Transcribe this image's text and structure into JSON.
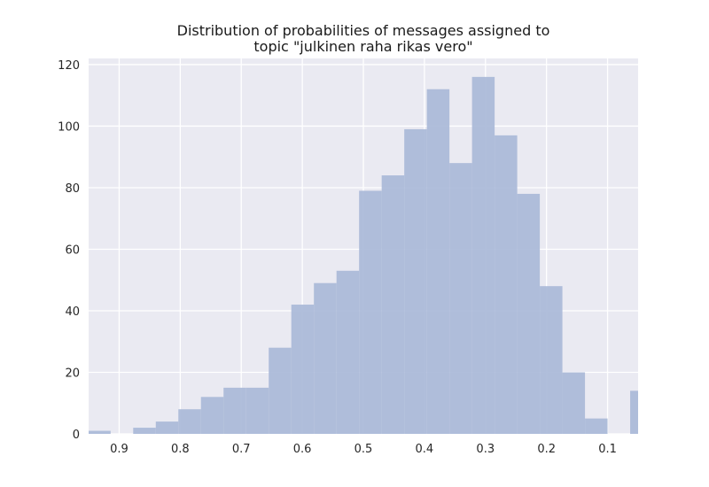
{
  "chart_data": {
    "type": "bar",
    "title_lines": [
      "Distribution of probabilities of messages assigned to",
      "topic \"julkinen raha rikas vero\""
    ],
    "xlabel": "",
    "ylabel": "",
    "x_reversed": true,
    "xlim": [
      0.95,
      0.05
    ],
    "ylim": [
      0,
      122
    ],
    "xticks": [
      0.9,
      0.8,
      0.7,
      0.6,
      0.5,
      0.4,
      0.3,
      0.2,
      0.1
    ],
    "xtick_labels": [
      "0.9",
      "0.8",
      "0.7",
      "0.6",
      "0.5",
      "0.4",
      "0.3",
      "0.2",
      "0.1"
    ],
    "yticks": [
      0,
      20,
      40,
      60,
      80,
      100,
      120
    ],
    "ytick_labels": [
      "0",
      "20",
      "40",
      "60",
      "80",
      "100",
      "120"
    ],
    "grid": true,
    "colors": {
      "bar": "#a9b9d8",
      "background": "#eaeaf2",
      "grid": "#ffffff"
    },
    "bins": [
      {
        "x_start": 0.951,
        "x_end": 0.914,
        "value": 1
      },
      {
        "x_start": 0.914,
        "x_end": 0.877,
        "value": 0
      },
      {
        "x_start": 0.877,
        "x_end": 0.84,
        "value": 2
      },
      {
        "x_start": 0.84,
        "x_end": 0.803,
        "value": 4
      },
      {
        "x_start": 0.803,
        "x_end": 0.766,
        "value": 8
      },
      {
        "x_start": 0.766,
        "x_end": 0.729,
        "value": 12
      },
      {
        "x_start": 0.729,
        "x_end": 0.692,
        "value": 15
      },
      {
        "x_start": 0.692,
        "x_end": 0.655,
        "value": 15
      },
      {
        "x_start": 0.655,
        "x_end": 0.618,
        "value": 28
      },
      {
        "x_start": 0.618,
        "x_end": 0.581,
        "value": 42
      },
      {
        "x_start": 0.581,
        "x_end": 0.544,
        "value": 49
      },
      {
        "x_start": 0.544,
        "x_end": 0.507,
        "value": 53
      },
      {
        "x_start": 0.507,
        "x_end": 0.47,
        "value": 79
      },
      {
        "x_start": 0.47,
        "x_end": 0.433,
        "value": 84
      },
      {
        "x_start": 0.433,
        "x_end": 0.396,
        "value": 99
      },
      {
        "x_start": 0.396,
        "x_end": 0.359,
        "value": 112
      },
      {
        "x_start": 0.359,
        "x_end": 0.322,
        "value": 88
      },
      {
        "x_start": 0.322,
        "x_end": 0.285,
        "value": 116
      },
      {
        "x_start": 0.285,
        "x_end": 0.248,
        "value": 97
      },
      {
        "x_start": 0.248,
        "x_end": 0.211,
        "value": 78
      },
      {
        "x_start": 0.211,
        "x_end": 0.174,
        "value": 48
      },
      {
        "x_start": 0.174,
        "x_end": 0.137,
        "value": 20
      },
      {
        "x_start": 0.137,
        "x_end": 0.1,
        "value": 5
      },
      {
        "x_start": 0.1,
        "x_end": 0.063,
        "value": 0
      },
      {
        "x_start": 0.063,
        "x_end": 0.026,
        "value": 14
      }
    ]
  }
}
